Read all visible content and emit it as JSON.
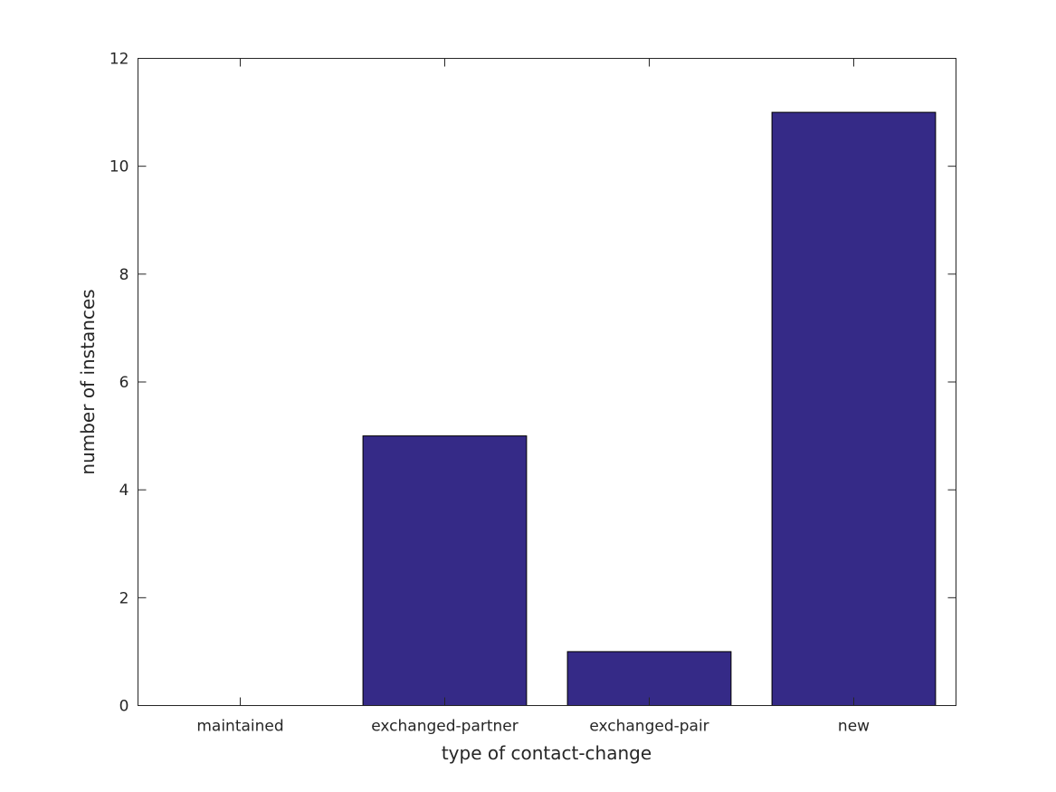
{
  "chart_data": {
    "type": "bar",
    "title": "",
    "xlabel": "type of contact-change",
    "ylabel": "number of instances",
    "categories": [
      "maintained",
      "exchanged-partner",
      "exchanged-pair",
      "new"
    ],
    "values": [
      0,
      5,
      1,
      11
    ],
    "ylim": [
      0,
      12
    ],
    "yticks": [
      0,
      2,
      4,
      6,
      8,
      10,
      12
    ],
    "grid": false,
    "bar_color": "#352a87",
    "edge_color": "#000000"
  }
}
